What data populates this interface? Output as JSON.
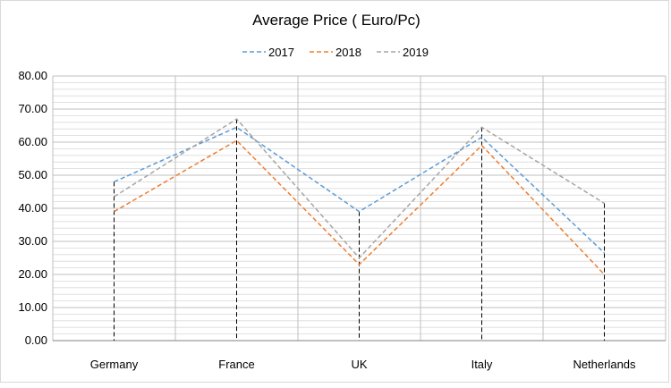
{
  "chart_data": {
    "type": "line",
    "title": "Average Price ( Euro/Pc)",
    "categories": [
      "Germany",
      "France",
      "UK",
      "Italy",
      "Netherlands"
    ],
    "series": [
      {
        "name": "2017",
        "color": "#5b9bd5",
        "values": [
          48.0,
          64.5,
          39.0,
          61.5,
          26.5
        ]
      },
      {
        "name": "2018",
        "color": "#ed7d31",
        "values": [
          39.0,
          60.5,
          23.0,
          59.0,
          20.0
        ]
      },
      {
        "name": "2019",
        "color": "#a5a5a5",
        "values": [
          43.5,
          67.0,
          25.0,
          64.5,
          41.5
        ]
      }
    ],
    "yticks": [
      "80.00",
      "70.00",
      "60.00",
      "50.00",
      "40.00",
      "30.00",
      "20.00",
      "10.00",
      "0.00"
    ],
    "ylim": [
      0,
      80
    ],
    "legend_position": "top",
    "grid": true,
    "drop_lines": true,
    "line_style": "dashed"
  }
}
